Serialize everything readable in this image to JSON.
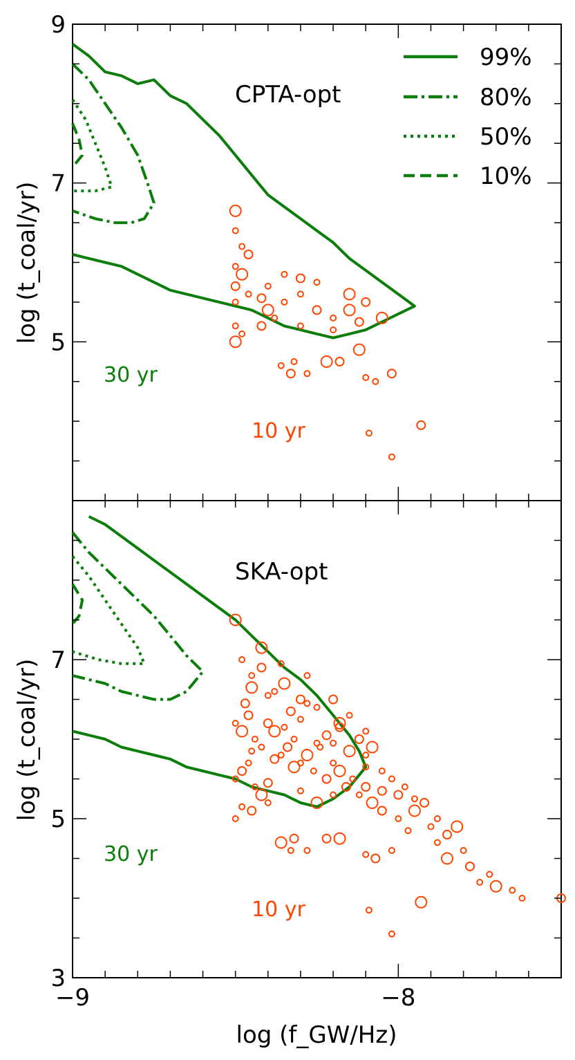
{
  "colors": {
    "contour": "#0a7d0a",
    "points": "#ff4500",
    "axes": "#000000"
  },
  "chart_data": [
    {
      "type": "scatter",
      "title": "CPTA-opt",
      "xlabel": "log (f_GW/Hz)",
      "ylabel": "log (t_coal/yr)",
      "xlim": [
        -9,
        -7.5
      ],
      "ylim": [
        3,
        9
      ],
      "x_ticks": [
        "−9",
        "−8"
      ],
      "y_ticks": [
        "3",
        "5",
        "7",
        "9"
      ],
      "legend": {
        "placement": "top-right",
        "entries": [
          "99%",
          "80%",
          "50%",
          "10%"
        ]
      },
      "annotations": [
        {
          "text": "30 yr",
          "color": "green",
          "x": -8.87,
          "y": 4.55
        },
        {
          "text": "10 yr",
          "color": "orange",
          "x": -8.38,
          "y": 3.85
        }
      ],
      "contours": [
        {
          "level": "99%",
          "style": "solid",
          "points": [
            [
              -9.0,
              8.75
            ],
            [
              -8.95,
              8.6
            ],
            [
              -8.9,
              8.4
            ],
            [
              -8.85,
              8.35
            ],
            [
              -8.8,
              8.25
            ],
            [
              -8.75,
              8.3
            ],
            [
              -8.7,
              8.1
            ],
            [
              -8.65,
              8.0
            ],
            [
              -8.6,
              7.8
            ],
            [
              -8.55,
              7.6
            ],
            [
              -8.5,
              7.35
            ],
            [
              -8.45,
              7.1
            ],
            [
              -8.4,
              6.85
            ],
            [
              -8.35,
              6.7
            ],
            [
              -8.3,
              6.55
            ],
            [
              -8.25,
              6.4
            ],
            [
              -8.2,
              6.25
            ],
            [
              -8.15,
              6.05
            ],
            [
              -8.1,
              5.9
            ],
            [
              -8.05,
              5.75
            ],
            [
              -8.0,
              5.6
            ],
            [
              -7.95,
              5.45
            ],
            [
              -8.0,
              5.35
            ],
            [
              -8.05,
              5.25
            ],
            [
              -8.1,
              5.15
            ],
            [
              -8.15,
              5.1
            ],
            [
              -8.2,
              5.05
            ],
            [
              -8.25,
              5.1
            ],
            [
              -8.3,
              5.15
            ],
            [
              -8.35,
              5.2
            ],
            [
              -8.4,
              5.3
            ],
            [
              -8.45,
              5.4
            ],
            [
              -8.5,
              5.45
            ],
            [
              -8.55,
              5.5
            ],
            [
              -8.6,
              5.55
            ],
            [
              -8.65,
              5.6
            ],
            [
              -8.7,
              5.65
            ],
            [
              -8.75,
              5.75
            ],
            [
              -8.8,
              5.85
            ],
            [
              -8.85,
              5.95
            ],
            [
              -8.9,
              6.0
            ],
            [
              -8.95,
              6.05
            ],
            [
              -9.0,
              6.1
            ]
          ]
        },
        {
          "level": "80%",
          "style": "dashdot",
          "points": [
            [
              -9.0,
              8.5
            ],
            [
              -8.95,
              8.3
            ],
            [
              -8.9,
              8.0
            ],
            [
              -8.85,
              7.7
            ],
            [
              -8.8,
              7.35
            ],
            [
              -8.77,
              7.0
            ],
            [
              -8.75,
              6.75
            ],
            [
              -8.78,
              6.55
            ],
            [
              -8.82,
              6.5
            ],
            [
              -8.87,
              6.5
            ],
            [
              -8.93,
              6.55
            ],
            [
              -9.0,
              6.65
            ]
          ]
        },
        {
          "level": "50%",
          "style": "dotted",
          "points": [
            [
              -9.0,
              8.05
            ],
            [
              -8.96,
              7.8
            ],
            [
              -8.93,
              7.5
            ],
            [
              -8.9,
              7.2
            ],
            [
              -8.88,
              6.95
            ],
            [
              -8.93,
              6.9
            ],
            [
              -9.0,
              6.9
            ]
          ]
        },
        {
          "level": "10%",
          "style": "dashed",
          "points": [
            [
              -9.0,
              7.75
            ],
            [
              -8.98,
              7.55
            ],
            [
              -8.97,
              7.35
            ],
            [
              -9.0,
              7.2
            ]
          ]
        }
      ],
      "points": [
        [
          -8.5,
          6.65
        ],
        [
          -8.5,
          6.4
        ],
        [
          -8.48,
          6.2
        ],
        [
          -8.46,
          6.1
        ],
        [
          -8.5,
          5.95
        ],
        [
          -8.48,
          5.85
        ],
        [
          -8.5,
          5.7
        ],
        [
          -8.46,
          5.6
        ],
        [
          -8.5,
          5.5
        ],
        [
          -8.42,
          5.55
        ],
        [
          -8.4,
          5.4
        ],
        [
          -8.38,
          5.3
        ],
        [
          -8.42,
          5.2
        ],
        [
          -8.5,
          5.2
        ],
        [
          -8.48,
          5.1
        ],
        [
          -8.5,
          5.0
        ],
        [
          -8.35,
          5.5
        ],
        [
          -8.3,
          5.6
        ],
        [
          -8.25,
          5.4
        ],
        [
          -8.2,
          5.3
        ],
        [
          -8.15,
          5.4
        ],
        [
          -8.1,
          5.5
        ],
        [
          -8.3,
          5.2
        ],
        [
          -8.2,
          5.15
        ],
        [
          -8.12,
          5.25
        ],
        [
          -8.05,
          5.3
        ],
        [
          -8.35,
          5.85
        ],
        [
          -8.3,
          5.8
        ],
        [
          -8.25,
          5.75
        ],
        [
          -8.4,
          5.7
        ],
        [
          -8.15,
          5.6
        ],
        [
          -8.36,
          4.7
        ],
        [
          -8.32,
          4.75
        ],
        [
          -8.33,
          4.6
        ],
        [
          -8.28,
          4.6
        ],
        [
          -8.22,
          4.75
        ],
        [
          -8.18,
          4.75
        ],
        [
          -8.1,
          4.55
        ],
        [
          -8.07,
          4.5
        ],
        [
          -8.02,
          4.6
        ],
        [
          -8.12,
          4.9
        ],
        [
          -8.09,
          3.85
        ],
        [
          -7.93,
          3.95
        ],
        [
          -8.02,
          3.55
        ]
      ]
    },
    {
      "type": "scatter",
      "title": "SKA-opt",
      "xlabel": "log (f_GW/Hz)",
      "ylabel": "log (t_coal/yr)",
      "xlim": [
        -9,
        -7.5
      ],
      "ylim": [
        3,
        9
      ],
      "x_ticks": [
        "−9",
        "−8"
      ],
      "y_ticks": [
        "3",
        "5",
        "7",
        "9"
      ],
      "annotations": [
        {
          "text": "30 yr",
          "color": "green",
          "x": -8.87,
          "y": 4.55
        },
        {
          "text": "10 yr",
          "color": "orange",
          "x": -8.38,
          "y": 3.85
        }
      ],
      "contours": [
        {
          "level": "99%",
          "style": "solid",
          "points": [
            [
              -8.95,
              8.8
            ],
            [
              -8.9,
              8.7
            ],
            [
              -8.85,
              8.55
            ],
            [
              -8.8,
              8.4
            ],
            [
              -8.75,
              8.25
            ],
            [
              -8.7,
              8.1
            ],
            [
              -8.65,
              7.95
            ],
            [
              -8.6,
              7.8
            ],
            [
              -8.55,
              7.65
            ],
            [
              -8.5,
              7.5
            ],
            [
              -8.45,
              7.3
            ],
            [
              -8.4,
              7.1
            ],
            [
              -8.35,
              6.9
            ],
            [
              -8.3,
              6.75
            ],
            [
              -8.25,
              6.55
            ],
            [
              -8.2,
              6.3
            ],
            [
              -8.15,
              6.05
            ],
            [
              -8.12,
              5.85
            ],
            [
              -8.1,
              5.65
            ],
            [
              -8.15,
              5.4
            ],
            [
              -8.2,
              5.25
            ],
            [
              -8.25,
              5.15
            ],
            [
              -8.3,
              5.2
            ],
            [
              -8.35,
              5.3
            ],
            [
              -8.4,
              5.35
            ],
            [
              -8.45,
              5.4
            ],
            [
              -8.5,
              5.5
            ],
            [
              -8.55,
              5.55
            ],
            [
              -8.6,
              5.6
            ],
            [
              -8.65,
              5.65
            ],
            [
              -8.7,
              5.75
            ],
            [
              -8.75,
              5.8
            ],
            [
              -8.8,
              5.85
            ],
            [
              -8.85,
              5.9
            ],
            [
              -8.9,
              6.0
            ],
            [
              -9.0,
              6.1
            ]
          ]
        },
        {
          "level": "80%",
          "style": "dashdot",
          "points": [
            [
              -9.0,
              8.6
            ],
            [
              -8.95,
              8.35
            ],
            [
              -8.9,
              8.15
            ],
            [
              -8.85,
              7.95
            ],
            [
              -8.8,
              7.75
            ],
            [
              -8.75,
              7.55
            ],
            [
              -8.7,
              7.3
            ],
            [
              -8.65,
              7.05
            ],
            [
              -8.6,
              6.85
            ],
            [
              -8.65,
              6.6
            ],
            [
              -8.7,
              6.5
            ],
            [
              -8.75,
              6.5
            ],
            [
              -8.8,
              6.55
            ],
            [
              -8.85,
              6.6
            ],
            [
              -8.9,
              6.7
            ],
            [
              -8.95,
              6.75
            ],
            [
              -9.0,
              6.8
            ]
          ]
        },
        {
          "level": "50%",
          "style": "dotted",
          "points": [
            [
              -9.0,
              8.3
            ],
            [
              -8.95,
              8.05
            ],
            [
              -8.9,
              7.75
            ],
            [
              -8.85,
              7.45
            ],
            [
              -8.8,
              7.15
            ],
            [
              -8.78,
              6.95
            ],
            [
              -8.85,
              6.95
            ],
            [
              -8.92,
              7.0
            ],
            [
              -9.0,
              7.1
            ]
          ]
        },
        {
          "level": "10%",
          "style": "dashed",
          "points": [
            [
              -9.0,
              7.95
            ],
            [
              -8.97,
              7.75
            ],
            [
              -8.98,
              7.55
            ],
            [
              -9.0,
              7.45
            ]
          ]
        }
      ],
      "points": [
        [
          -8.5,
          7.5
        ],
        [
          -8.48,
          7.0
        ],
        [
          -8.45,
          6.8
        ],
        [
          -8.42,
          6.9
        ],
        [
          -8.38,
          6.6
        ],
        [
          -8.35,
          6.7
        ],
        [
          -8.3,
          6.5
        ],
        [
          -8.28,
          6.8
        ],
        [
          -8.25,
          6.4
        ],
        [
          -8.2,
          6.5
        ],
        [
          -8.18,
          6.2
        ],
        [
          -8.15,
          6.3
        ],
        [
          -8.12,
          6.0
        ],
        [
          -8.1,
          6.1
        ],
        [
          -8.1,
          5.8
        ],
        [
          -8.08,
          5.9
        ],
        [
          -8.05,
          5.6
        ],
        [
          -8.02,
          5.5
        ],
        [
          -8.0,
          5.3
        ],
        [
          -7.98,
          5.4
        ],
        [
          -7.95,
          5.1
        ],
        [
          -7.92,
          5.2
        ],
        [
          -7.9,
          4.9
        ],
        [
          -7.88,
          5.0
        ],
        [
          -7.85,
          4.8
        ],
        [
          -7.82,
          4.9
        ],
        [
          -7.8,
          4.6
        ],
        [
          -7.78,
          4.4
        ],
        [
          -7.75,
          4.2
        ],
        [
          -7.72,
          4.3
        ],
        [
          -7.7,
          4.15
        ],
        [
          -7.65,
          4.1
        ],
        [
          -7.62,
          4.0
        ],
        [
          -7.5,
          4.0
        ],
        [
          -8.5,
          6.2
        ],
        [
          -8.48,
          6.1
        ],
        [
          -8.46,
          6.3
        ],
        [
          -8.44,
          6.0
        ],
        [
          -8.42,
          5.9
        ],
        [
          -8.4,
          6.2
        ],
        [
          -8.38,
          6.1
        ],
        [
          -8.36,
          5.8
        ],
        [
          -8.34,
          5.9
        ],
        [
          -8.32,
          6.0
        ],
        [
          -8.3,
          5.7
        ],
        [
          -8.28,
          5.8
        ],
        [
          -8.26,
          5.6
        ],
        [
          -8.24,
          5.9
        ],
        [
          -8.22,
          5.5
        ],
        [
          -8.2,
          5.7
        ],
        [
          -8.18,
          5.6
        ],
        [
          -8.16,
          5.4
        ],
        [
          -8.14,
          5.5
        ],
        [
          -8.12,
          5.3
        ],
        [
          -8.1,
          5.4
        ],
        [
          -8.08,
          5.2
        ],
        [
          -8.5,
          5.5
        ],
        [
          -8.48,
          5.6
        ],
        [
          -8.46,
          5.7
        ],
        [
          -8.44,
          5.4
        ],
        [
          -8.42,
          5.3
        ],
        [
          -8.4,
          5.2
        ],
        [
          -8.48,
          5.15
        ],
        [
          -8.45,
          5.1
        ],
        [
          -8.5,
          5.0
        ],
        [
          -8.36,
          4.7
        ],
        [
          -8.32,
          4.75
        ],
        [
          -8.33,
          4.6
        ],
        [
          -8.28,
          4.6
        ],
        [
          -8.22,
          4.75
        ],
        [
          -8.18,
          4.75
        ],
        [
          -8.1,
          4.55
        ],
        [
          -8.07,
          4.5
        ],
        [
          -8.02,
          4.6
        ],
        [
          -8.09,
          3.85
        ],
        [
          -7.93,
          3.95
        ],
        [
          -8.02,
          3.55
        ],
        [
          -8.25,
          5.95
        ],
        [
          -8.33,
          6.35
        ],
        [
          -8.4,
          6.55
        ],
        [
          -8.45,
          6.65
        ],
        [
          -8.47,
          6.45
        ],
        [
          -8.35,
          6.15
        ],
        [
          -8.3,
          6.25
        ],
        [
          -8.22,
          6.05
        ],
        [
          -8.15,
          5.85
        ],
        [
          -8.1,
          5.65
        ],
        [
          -8.05,
          5.35
        ],
        [
          -7.95,
          5.25
        ],
        [
          -7.88,
          4.7
        ],
        [
          -7.85,
          4.5
        ],
        [
          -8.0,
          5.0
        ],
        [
          -7.97,
          4.85
        ],
        [
          -8.05,
          5.1
        ],
        [
          -8.2,
          5.3
        ],
        [
          -8.25,
          5.2
        ],
        [
          -8.4,
          5.45
        ],
        [
          -8.3,
          5.35
        ],
        [
          -8.45,
          5.85
        ],
        [
          -8.38,
          5.75
        ],
        [
          -8.32,
          5.65
        ],
        [
          -8.2,
          5.95
        ],
        [
          -8.18,
          6.15
        ],
        [
          -8.28,
          6.45
        ],
        [
          -8.36,
          6.95
        ],
        [
          -8.42,
          7.15
        ]
      ]
    }
  ]
}
